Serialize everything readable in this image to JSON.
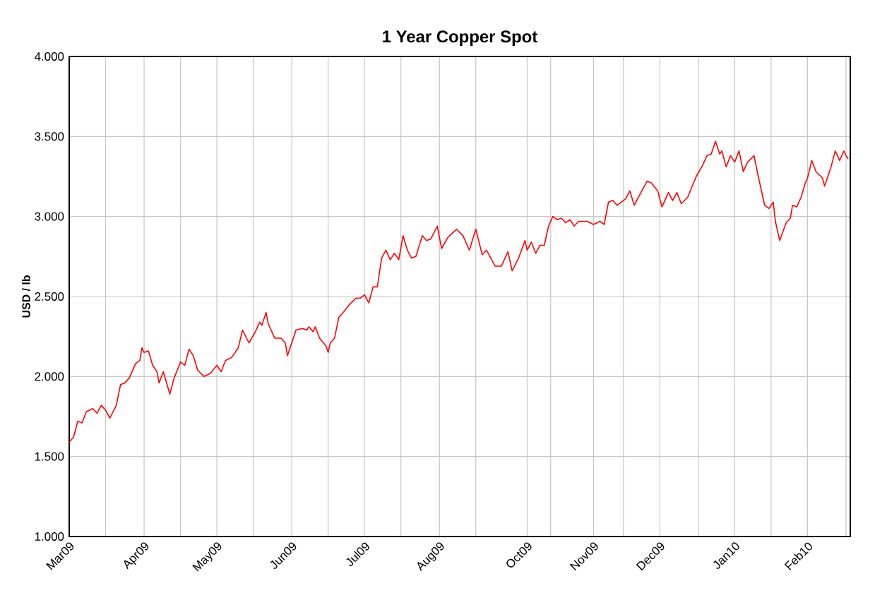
{
  "chart_data": {
    "type": "line",
    "title": "1 Year Copper Spot",
    "ylabel": "USD / lb",
    "xlim": [
      "2009-03-01",
      "2010-03-01"
    ],
    "xticks": [
      {
        "value": "2009-03-01",
        "label": "Mar09"
      },
      {
        "value": "2009-03-18",
        "label": null
      },
      {
        "value": "2009-04-05",
        "label": "Apr09"
      },
      {
        "value": "2009-04-22",
        "label": null
      },
      {
        "value": "2009-05-09",
        "label": "May09"
      },
      {
        "value": "2009-05-26",
        "label": null
      },
      {
        "value": "2009-06-13",
        "label": "Jun09"
      },
      {
        "value": "2009-06-30",
        "label": null
      },
      {
        "value": "2009-07-17",
        "label": "Jul09"
      },
      {
        "value": "2009-08-03",
        "label": null
      },
      {
        "value": "2009-08-21",
        "label": "Aug09"
      },
      {
        "value": "2009-09-07",
        "label": null
      },
      {
        "value": "2009-10-01",
        "label": "Oct09"
      },
      {
        "value": "2009-10-12",
        "label": null
      },
      {
        "value": "2009-11-01",
        "label": "Nov09"
      },
      {
        "value": "2009-11-15",
        "label": null
      },
      {
        "value": "2009-12-02",
        "label": "Dec09"
      },
      {
        "value": "2009-12-20",
        "label": null
      },
      {
        "value": "2010-01-06",
        "label": "Jan10"
      },
      {
        "value": "2010-01-23",
        "label": null
      },
      {
        "value": "2010-02-09",
        "label": "Feb10"
      },
      {
        "value": "2010-02-27",
        "label": null
      }
    ],
    "ylim": [
      1,
      4
    ],
    "yticks": [
      {
        "value": 1,
        "label": "1.000"
      },
      {
        "value": 1.5,
        "label": "1.500"
      },
      {
        "value": 2,
        "label": "2.000"
      },
      {
        "value": 2.5,
        "label": "2.500"
      },
      {
        "value": 3,
        "label": "3.000"
      },
      {
        "value": 3.5,
        "label": "3.500"
      },
      {
        "value": 4,
        "label": "4.000"
      }
    ],
    "grid": true,
    "marker": "none",
    "series": [
      {
        "color": "#ff0000",
        "x": [
          "2009-03-01",
          "2009-03-03",
          "2009-03-05",
          "2009-03-07",
          "2009-03-09",
          "2009-03-12",
          "2009-03-14",
          "2009-03-16",
          "2009-03-18",
          "2009-03-20",
          "2009-03-23",
          "2009-03-25",
          "2009-03-27",
          "2009-03-29",
          "2009-04-01",
          "2009-04-03",
          "2009-04-04",
          "2009-04-05",
          "2009-04-07",
          "2009-04-09",
          "2009-04-11",
          "2009-04-12",
          "2009-04-14",
          "2009-04-17",
          "2009-04-19",
          "2009-04-22",
          "2009-04-24",
          "2009-04-26",
          "2009-04-28",
          "2009-04-30",
          "2009-05-03",
          "2009-05-06",
          "2009-05-09",
          "2009-05-11",
          "2009-05-13",
          "2009-05-16",
          "2009-05-19",
          "2009-05-21",
          "2009-05-24",
          "2009-05-27",
          "2009-05-29",
          "2009-05-30",
          "2009-06-01",
          "2009-06-02",
          "2009-06-05",
          "2009-06-08",
          "2009-06-10",
          "2009-06-11",
          "2009-06-13",
          "2009-06-15",
          "2009-06-18",
          "2009-06-20",
          "2009-06-21",
          "2009-06-23",
          "2009-06-24",
          "2009-06-26",
          "2009-06-29",
          "2009-06-30",
          "2009-07-01",
          "2009-07-03",
          "2009-07-05",
          "2009-07-07",
          "2009-07-10",
          "2009-07-13",
          "2009-07-15",
          "2009-07-17",
          "2009-07-19",
          "2009-07-21",
          "2009-07-23",
          "2009-07-25",
          "2009-07-27",
          "2009-07-29",
          "2009-07-31",
          "2009-08-02",
          "2009-08-04",
          "2009-08-06",
          "2009-08-08",
          "2009-08-10",
          "2009-08-13",
          "2009-08-15",
          "2009-08-17",
          "2009-08-20",
          "2009-08-22",
          "2009-08-25",
          "2009-08-29",
          "2009-09-01",
          "2009-09-04",
          "2009-09-07",
          "2009-09-10",
          "2009-09-12",
          "2009-09-16",
          "2009-09-19",
          "2009-09-22",
          "2009-09-24",
          "2009-09-27",
          "2009-09-30",
          "2009-10-01",
          "2009-10-03",
          "2009-10-05",
          "2009-10-07",
          "2009-10-09",
          "2009-10-11",
          "2009-10-13",
          "2009-10-15",
          "2009-10-17",
          "2009-10-19",
          "2009-10-21",
          "2009-10-23",
          "2009-10-25",
          "2009-10-29",
          "2009-11-01",
          "2009-11-04",
          "2009-11-06",
          "2009-11-08",
          "2009-11-10",
          "2009-11-12",
          "2009-11-15",
          "2009-11-16",
          "2009-11-18",
          "2009-11-20",
          "2009-11-22",
          "2009-11-26",
          "2009-11-28",
          "2009-12-01",
          "2009-12-03",
          "2009-12-06",
          "2009-12-08",
          "2009-12-10",
          "2009-12-12",
          "2009-12-15",
          "2009-12-19",
          "2009-12-22",
          "2009-12-24",
          "2009-12-26",
          "2009-12-28",
          "2009-12-30",
          "2009-12-31",
          "2010-01-02",
          "2010-01-04",
          "2010-01-06",
          "2010-01-08",
          "2010-01-10",
          "2010-01-12",
          "2010-01-15",
          "2010-01-17",
          "2010-01-20",
          "2010-01-22",
          "2010-01-24",
          "2010-01-25",
          "2010-01-27",
          "2010-01-30",
          "2010-02-01",
          "2010-02-02",
          "2010-02-04",
          "2010-02-06",
          "2010-02-08",
          "2010-02-09",
          "2010-02-11",
          "2010-02-13",
          "2010-02-16",
          "2010-02-17",
          "2010-02-20",
          "2010-02-22",
          "2010-02-24",
          "2010-02-26",
          "2010-02-27",
          "2010-02-28"
        ],
        "values": [
          1.59,
          1.62,
          1.72,
          1.71,
          1.78,
          1.8,
          1.77,
          1.82,
          1.79,
          1.74,
          1.82,
          1.95,
          1.96,
          1.99,
          2.08,
          2.1,
          2.18,
          2.15,
          2.16,
          2.07,
          2.03,
          1.96,
          2.03,
          1.89,
          1.99,
          2.09,
          2.07,
          2.17,
          2.13,
          2.04,
          2.0,
          2.02,
          2.07,
          2.03,
          2.1,
          2.12,
          2.18,
          2.29,
          2.21,
          2.28,
          2.34,
          2.32,
          2.4,
          2.33,
          2.24,
          2.24,
          2.21,
          2.13,
          2.21,
          2.29,
          2.3,
          2.29,
          2.31,
          2.28,
          2.31,
          2.24,
          2.19,
          2.15,
          2.21,
          2.24,
          2.37,
          2.4,
          2.45,
          2.49,
          2.49,
          2.51,
          2.46,
          2.56,
          2.56,
          2.74,
          2.79,
          2.73,
          2.77,
          2.73,
          2.88,
          2.79,
          2.74,
          2.75,
          2.88,
          2.85,
          2.86,
          2.94,
          2.8,
          2.87,
          2.92,
          2.88,
          2.79,
          2.92,
          2.76,
          2.79,
          2.69,
          2.69,
          2.78,
          2.66,
          2.74,
          2.85,
          2.79,
          2.84,
          2.77,
          2.82,
          2.82,
          2.94,
          3.0,
          2.98,
          2.99,
          2.96,
          2.98,
          2.94,
          2.97,
          2.97,
          2.95,
          2.97,
          2.95,
          3.09,
          3.1,
          3.07,
          3.1,
          3.11,
          3.16,
          3.07,
          3.12,
          3.22,
          3.21,
          3.16,
          3.06,
          3.15,
          3.1,
          3.15,
          3.08,
          3.12,
          3.25,
          3.32,
          3.38,
          3.39,
          3.47,
          3.39,
          3.41,
          3.31,
          3.38,
          3.34,
          3.41,
          3.28,
          3.34,
          3.38,
          3.25,
          3.07,
          3.05,
          3.09,
          2.97,
          2.85,
          2.96,
          2.99,
          3.07,
          3.06,
          3.12,
          3.21,
          3.24,
          3.35,
          3.28,
          3.24,
          3.19,
          3.31,
          3.41,
          3.35,
          3.41,
          3.38,
          3.36
        ]
      }
    ]
  }
}
